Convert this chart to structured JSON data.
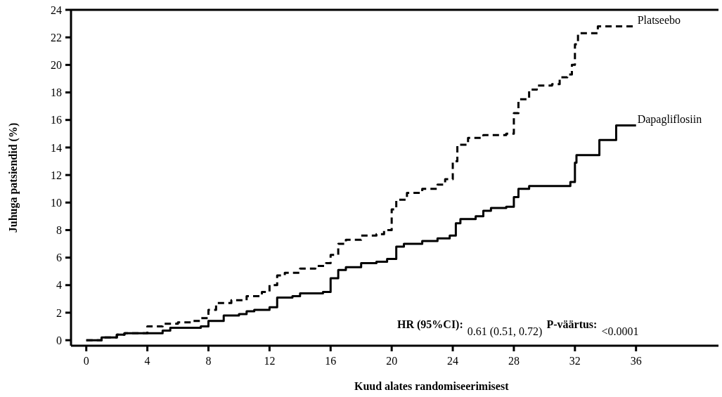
{
  "chart_data": {
    "type": "step",
    "xlabel": "Kuud alates randomiseerimisest",
    "ylabel": "Juhuga patsiendid (%)",
    "xlim": [
      -1,
      41.4
    ],
    "ylim": [
      -0.4,
      24
    ],
    "xticks": [
      0,
      4,
      8,
      12,
      16,
      20,
      24,
      28,
      32,
      36
    ],
    "yticks": [
      0,
      2,
      4,
      6,
      8,
      10,
      12,
      14,
      16,
      18,
      20,
      22,
      24
    ],
    "grid": false,
    "legend": false,
    "series": [
      {
        "name": "Platseebo",
        "color": "#000000",
        "line_style": "dashed",
        "x": [
          0,
          1,
          2,
          2.5,
          3.5,
          4,
          5,
          6,
          7,
          7.5,
          8,
          8.5,
          9.5,
          10.5,
          11.5,
          12,
          12.5,
          13,
          14,
          15,
          15.7,
          16,
          16.5,
          17,
          18,
          19,
          19.5,
          20,
          20.3,
          21,
          22,
          23,
          23.5,
          24,
          24.3,
          25,
          26,
          27.5,
          28,
          28.3,
          29,
          29.5,
          30.5,
          31,
          31.5,
          31.8,
          32,
          32.2,
          33.5,
          36
        ],
        "values": [
          0,
          0.2,
          0.4,
          0.5,
          0.5,
          1.0,
          1.2,
          1.3,
          1.4,
          1.6,
          2.2,
          2.7,
          2.9,
          3.2,
          3.5,
          4.0,
          4.7,
          4.9,
          5.2,
          5.4,
          5.6,
          6.2,
          7.0,
          7.3,
          7.6,
          7.7,
          8.0,
          9.5,
          10.2,
          10.7,
          11.0,
          11.3,
          11.7,
          13.0,
          14.2,
          14.7,
          14.9,
          15.0,
          16.5,
          17.5,
          18.2,
          18.5,
          18.6,
          19.1,
          19.3,
          20.0,
          21.5,
          22.3,
          22.8,
          22.8
        ]
      },
      {
        "name": "Dapagliflosiin",
        "color": "#000000",
        "line_style": "solid",
        "x": [
          0,
          1,
          2,
          2.5,
          4,
          5,
          5.5,
          7.5,
          8,
          9,
          10,
          10.5,
          11,
          12,
          12.5,
          13.5,
          14,
          15.5,
          16,
          16.5,
          17,
          18,
          19,
          19.7,
          20.3,
          20.8,
          22,
          23,
          23.8,
          24.2,
          24.5,
          25.5,
          26,
          26.5,
          27.5,
          28,
          28.3,
          29,
          31.7,
          32,
          32.1,
          33.6,
          34.7,
          36
        ],
        "values": [
          0,
          0.2,
          0.4,
          0.5,
          0.5,
          0.7,
          0.9,
          1.0,
          1.4,
          1.8,
          1.9,
          2.1,
          2.2,
          2.4,
          3.1,
          3.2,
          3.4,
          3.5,
          4.5,
          5.1,
          5.3,
          5.6,
          5.7,
          5.9,
          6.8,
          7.0,
          7.2,
          7.4,
          7.6,
          8.5,
          8.8,
          9.0,
          9.4,
          9.6,
          9.7,
          10.4,
          11.0,
          11.2,
          11.5,
          12.9,
          13.45,
          14.55,
          15.6,
          15.6
        ]
      }
    ],
    "annotations": [
      "HR (95%CI):",
      "0.61 (0.51, 0.72)",
      "P-väärtus:",
      "<0.0001"
    ]
  }
}
